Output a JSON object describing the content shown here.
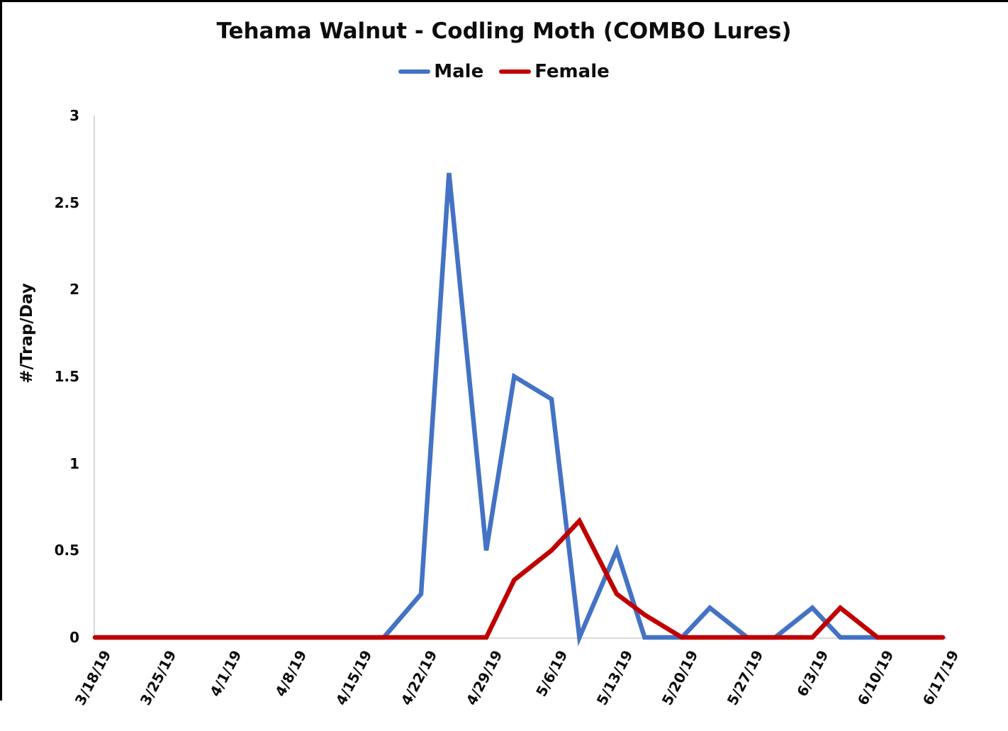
{
  "header": {
    "title": "Tehama Walnut - Codling Moth (COMBO Lures)"
  },
  "legend": {
    "items": [
      {
        "label": "Male",
        "color": "#4472C4"
      },
      {
        "label": "Female",
        "color": "#C00000"
      }
    ]
  },
  "y_axis": {
    "title": "#/Trap/Day",
    "tick_labels": [
      "0",
      "0.5",
      "1",
      "1.5",
      "2",
      "2.5",
      "3"
    ]
  },
  "x_axis": {
    "tick_labels": [
      "3/18/19",
      "3/25/19",
      "4/1/19",
      "4/8/19",
      "4/15/19",
      "4/22/19",
      "4/29/19",
      "5/6/19",
      "5/13/19",
      "5/20/19",
      "5/27/19",
      "6/3/19",
      "6/10/19",
      "6/17/19"
    ]
  },
  "layout_colors": {
    "axis_line": "#D9D9D9",
    "background": "#FFFFFF",
    "text": "#0D0D0D",
    "frame": "#000000"
  },
  "chart_data": {
    "type": "line",
    "title": "Tehama Walnut - Codling Moth (COMBO Lures)",
    "xlabel": "",
    "ylabel": "#/Trap/Day",
    "ylim": [
      0,
      3
    ],
    "y_ticks": [
      0,
      0.5,
      1,
      1.5,
      2,
      2.5,
      3
    ],
    "grid": false,
    "legend_position": "top",
    "x_tick_labels": [
      "3/18/19",
      "3/25/19",
      "4/1/19",
      "4/8/19",
      "4/15/19",
      "4/22/19",
      "4/29/19",
      "5/6/19",
      "5/13/19",
      "5/20/19",
      "5/27/19",
      "6/3/19",
      "6/10/19",
      "6/17/19"
    ],
    "x": [
      "3/18/19",
      "3/21/19",
      "3/25/19",
      "3/28/19",
      "4/1/19",
      "4/4/19",
      "4/8/19",
      "4/11/19",
      "4/15/19",
      "4/18/19",
      "4/22/19",
      "4/25/19",
      "4/29/19",
      "5/2/19",
      "5/6/19",
      "5/9/19",
      "5/13/19",
      "5/16/19",
      "5/20/19",
      "5/23/19",
      "5/27/19",
      "5/30/19",
      "6/3/19",
      "6/6/19",
      "6/10/19",
      "6/13/19",
      "6/17/19"
    ],
    "series": [
      {
        "name": "Male",
        "color": "#4472C4",
        "values": [
          0,
          0,
          0,
          0,
          0,
          0,
          0,
          0,
          0,
          0,
          0.25,
          2.67,
          0.5,
          1.5,
          1.37,
          0,
          0.5,
          0,
          0,
          0.17,
          0,
          0,
          0.17,
          0,
          0,
          0,
          0
        ]
      },
      {
        "name": "Female",
        "color": "#C00000",
        "values": [
          0,
          0,
          0,
          0,
          0,
          0,
          0,
          0,
          0,
          0,
          0,
          0,
          0,
          0.33,
          0.5,
          0.67,
          0.25,
          0.13,
          0,
          0,
          0,
          0,
          0,
          0.17,
          0,
          0,
          0
        ]
      }
    ]
  }
}
